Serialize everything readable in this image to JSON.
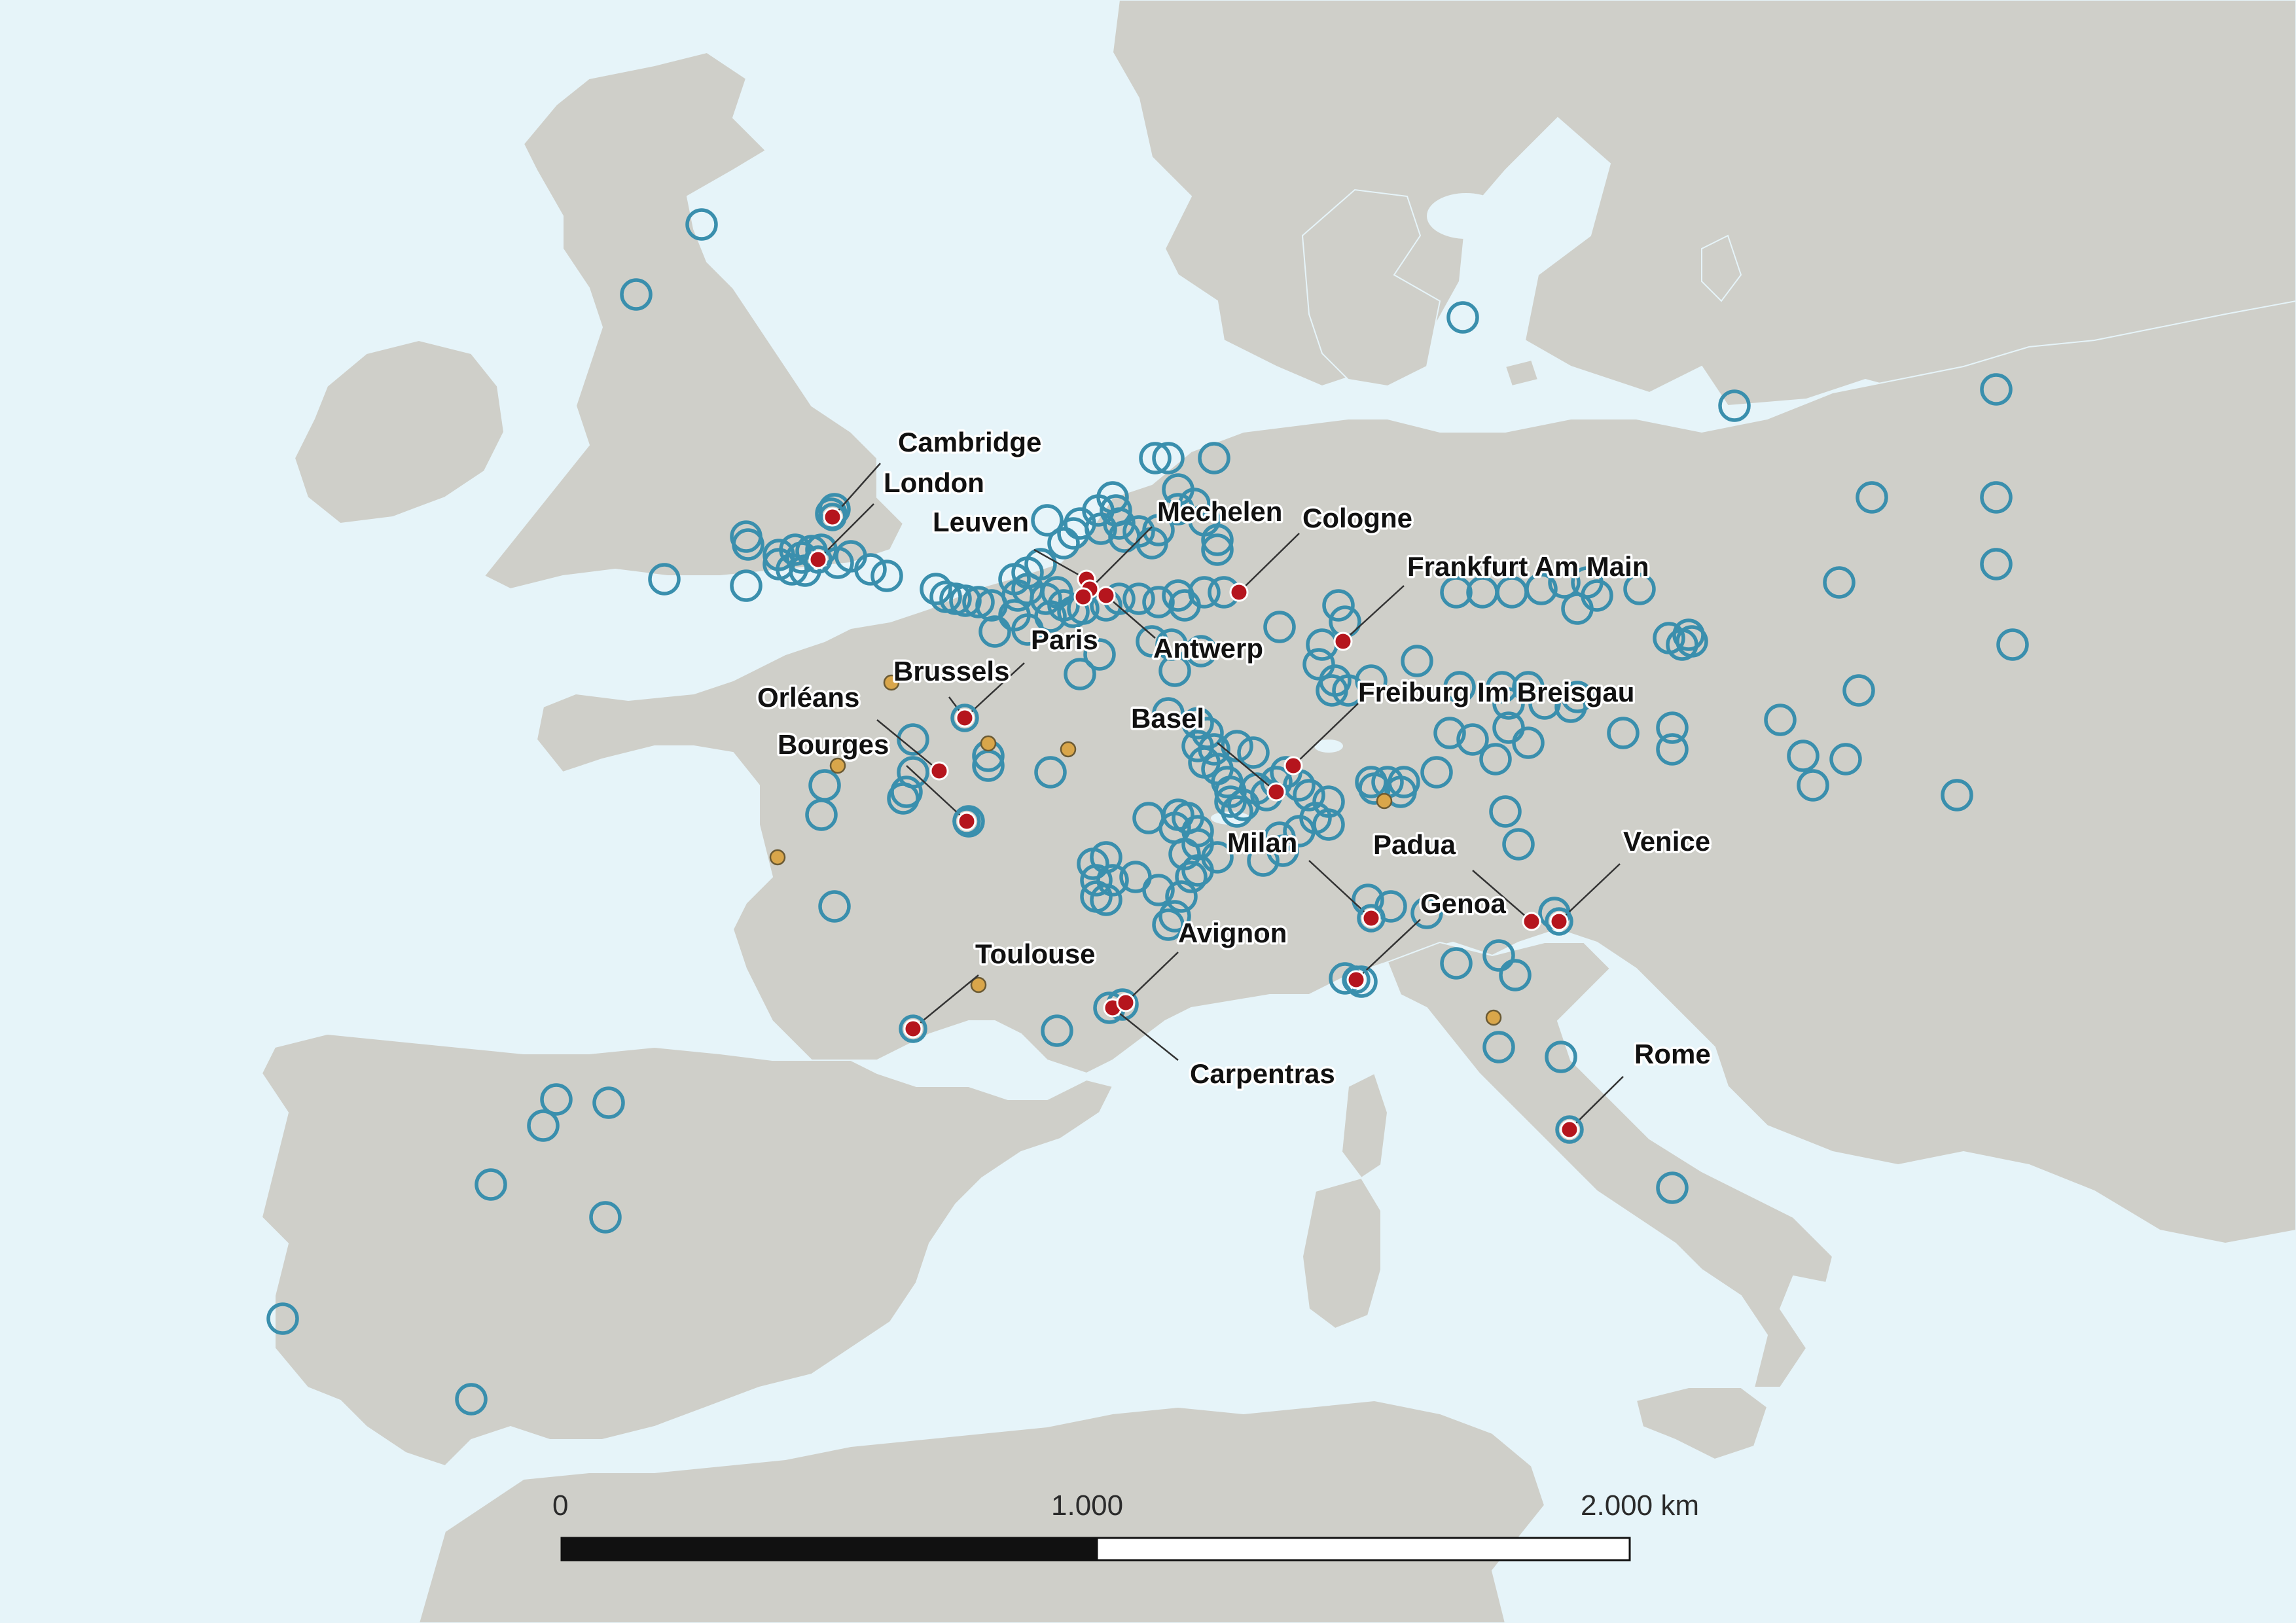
{
  "map": {
    "colors": {
      "sea": "#e6f4f9",
      "land": "#cfcfc9",
      "open_marker": "#3a8fad",
      "highlight_marker": "#b5151d",
      "minor_marker": "#d9a64a"
    },
    "labeled_cities": [
      {
        "id": "cambridge",
        "name": "Cambridge"
      },
      {
        "id": "london",
        "name": "London"
      },
      {
        "id": "leuven",
        "name": "Leuven"
      },
      {
        "id": "mechelen",
        "name": "Mechelen"
      },
      {
        "id": "cologne",
        "name": "Cologne"
      },
      {
        "id": "frankfurt",
        "name": "Frankfurt Am Main"
      },
      {
        "id": "paris",
        "name": "Paris"
      },
      {
        "id": "antwerp",
        "name": "Antwerp"
      },
      {
        "id": "brussels",
        "name": "Brussels"
      },
      {
        "id": "orleans",
        "name": "Orléans"
      },
      {
        "id": "freiburg",
        "name": "Freiburg Im Breisgau"
      },
      {
        "id": "basel",
        "name": "Basel"
      },
      {
        "id": "bourges",
        "name": "Bourges"
      },
      {
        "id": "milan",
        "name": "Milan"
      },
      {
        "id": "padua",
        "name": "Padua"
      },
      {
        "id": "venice",
        "name": "Venice"
      },
      {
        "id": "genoa",
        "name": "Genoa"
      },
      {
        "id": "avignon",
        "name": "Avignon"
      },
      {
        "id": "toulouse",
        "name": "Toulouse"
      },
      {
        "id": "carpentras",
        "name": "Carpentras"
      },
      {
        "id": "rome",
        "name": "Rome"
      }
    ],
    "scale_bar": {
      "label_start": "0",
      "label_mid": "1.000",
      "label_end": "2.000 km"
    }
  }
}
